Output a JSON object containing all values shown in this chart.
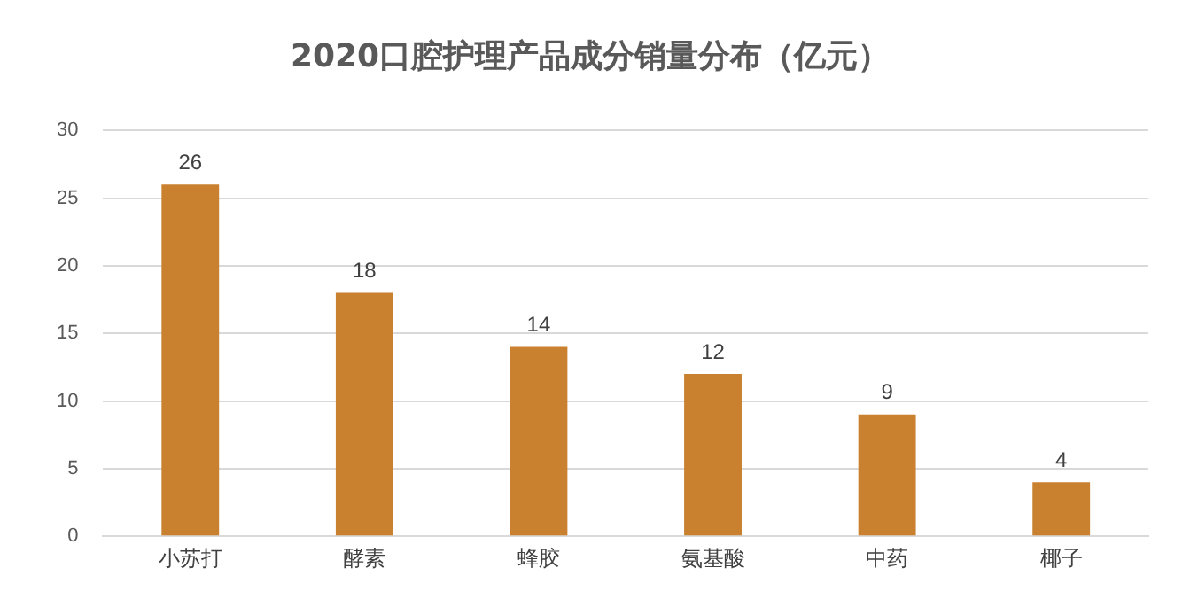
{
  "chart_data": {
    "type": "bar",
    "title": "2020口腔护理产品成分销量分布（亿元）",
    "categories": [
      "小苏打",
      "酵素",
      "蜂胶",
      "氨基酸",
      "中药",
      "椰子"
    ],
    "values": [
      26,
      18,
      14,
      12,
      9,
      4
    ],
    "color": "#c9802f",
    "ylim": [
      0,
      30
    ],
    "yticks": [
      0,
      5,
      10,
      15,
      20,
      25,
      30
    ],
    "grid": "y",
    "data_labels": true,
    "legend": false
  }
}
